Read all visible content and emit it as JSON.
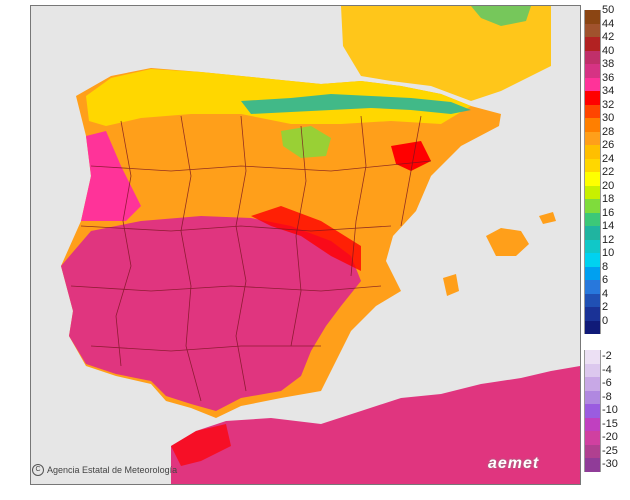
{
  "credit": {
    "copyright_symbol": "C",
    "agency": "Agencia Estatal de Meteorología"
  },
  "logo_text": "aemet",
  "colors": {
    "sea": "#e6e6e6",
    "land_outside": "#f2f2f2",
    "border_lines": "#7a1520"
  },
  "legend": {
    "positive": [
      {
        "label": "50",
        "color": "#8b4513"
      },
      {
        "label": "44",
        "color": "#a0522d"
      },
      {
        "label": "42",
        "color": "#b22222"
      },
      {
        "label": "40",
        "color": "#c0306a"
      },
      {
        "label": "38",
        "color": "#d63384"
      },
      {
        "label": "36",
        "color": "#ff3399"
      },
      {
        "label": "34",
        "color": "#ff0000"
      },
      {
        "label": "32",
        "color": "#ff4500"
      },
      {
        "label": "30",
        "color": "#ff7f00"
      },
      {
        "label": "28",
        "color": "#ff9f1a"
      },
      {
        "label": "26",
        "color": "#ffbf00"
      },
      {
        "label": "24",
        "color": "#ffd700"
      },
      {
        "label": "22",
        "color": "#ffff00"
      },
      {
        "label": "20",
        "color": "#c8f000"
      },
      {
        "label": "18",
        "color": "#7fdc3c"
      },
      {
        "label": "16",
        "color": "#3cc878"
      },
      {
        "label": "14",
        "color": "#20b4a0"
      },
      {
        "label": "12",
        "color": "#10c8c8"
      },
      {
        "label": "10",
        "color": "#00d2f0"
      },
      {
        "label": "8",
        "color": "#00a0f0"
      },
      {
        "label": "6",
        "color": "#2878dc"
      },
      {
        "label": "4",
        "color": "#2050b4"
      },
      {
        "label": "2",
        "color": "#1a3296"
      },
      {
        "label": "0",
        "color": "#101a78"
      }
    ],
    "negative": [
      {
        "label": "-2",
        "color": "#ece0f4"
      },
      {
        "label": "-4",
        "color": "#dcc8ee"
      },
      {
        "label": "-6",
        "color": "#c8a8e6"
      },
      {
        "label": "-8",
        "color": "#b088e0"
      },
      {
        "label": "-10",
        "color": "#9a5ce0"
      },
      {
        "label": "-15",
        "color": "#c040c0"
      },
      {
        "label": "-20",
        "color": "#d040a0"
      },
      {
        "label": "-25",
        "color": "#b04090"
      },
      {
        "label": "-30",
        "color": "#903c98"
      }
    ]
  }
}
